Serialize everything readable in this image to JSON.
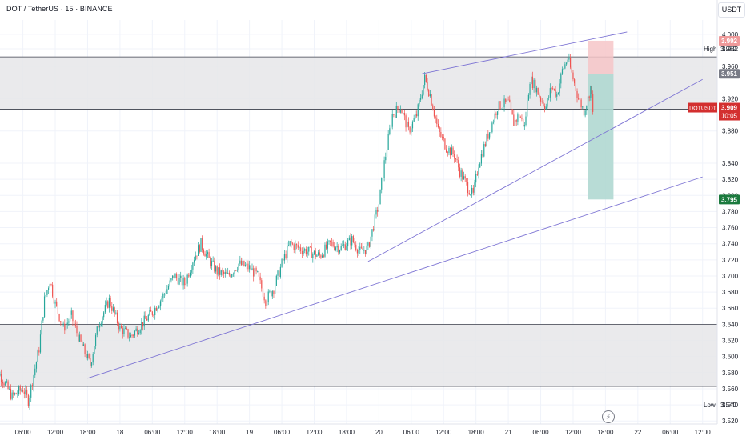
{
  "header": {
    "symbol_title": "DOT / TetherUS · 15 · BINANCE",
    "currency_button": "USDT"
  },
  "icons": {
    "alert": "lightning-icon"
  },
  "colors": {
    "up": "#26a69a",
    "down": "#ef5350",
    "trendline": "#7e75d4",
    "zone": "#e6e6e9",
    "stop": "#f6c6c8",
    "target": "#b0d8d2"
  },
  "chart_data": {
    "type": "candlestick",
    "symbol": "DOTUSDT",
    "timeframe": "15",
    "ylim": [
      3.51,
      4.01
    ],
    "y_ticks": [
      "4.000",
      "3.982",
      "3.960",
      "3.920",
      "3.880",
      "3.840",
      "3.820",
      "3.800",
      "3.780",
      "3.760",
      "3.740",
      "3.720",
      "3.700",
      "3.680",
      "3.660",
      "3.640",
      "3.620",
      "3.600",
      "3.580",
      "3.560",
      "3.540",
      "3.520"
    ],
    "x_ticks": [
      "06:00",
      "12:00",
      "18:00",
      "18",
      "06:00",
      "12:00",
      "18:00",
      "19",
      "06:00",
      "12:00",
      "18:00",
      "20",
      "06:00",
      "12:00",
      "18:00",
      "21",
      "06:00",
      "12:00",
      "18:00",
      "22",
      "06:00",
      "12:00"
    ],
    "price_labels": [
      {
        "label": "High",
        "value": "3.982"
      },
      {
        "label": "",
        "value": "3.992"
      },
      {
        "label": "",
        "value": "3.951"
      },
      {
        "label": "DOTUSDT",
        "value": "3.909",
        "countdown": "10:05"
      },
      {
        "label": "",
        "value": "3.795"
      },
      {
        "label": "Low",
        "value": "3.540"
      }
    ],
    "close_path": [
      [
        "17 00:00",
        3.595
      ],
      [
        "17 02:00",
        3.575
      ],
      [
        "17 04:00",
        3.55
      ],
      [
        "17 06:00",
        3.56
      ],
      [
        "17 07:00",
        3.545
      ],
      [
        "17 09:00",
        3.61
      ],
      [
        "17 10:00",
        3.67
      ],
      [
        "17 11:00",
        3.695
      ],
      [
        "17 12:00",
        3.665
      ],
      [
        "17 13:30",
        3.635
      ],
      [
        "17 15:00",
        3.65
      ],
      [
        "17 16:30",
        3.62
      ],
      [
        "17 18:30",
        3.59
      ],
      [
        "17 20:00",
        3.64
      ],
      [
        "17 22:00",
        3.67
      ],
      [
        "18 00:00",
        3.635
      ],
      [
        "18 02:00",
        3.625
      ],
      [
        "18 04:00",
        3.64
      ],
      [
        "18 06:00",
        3.655
      ],
      [
        "18 08:00",
        3.675
      ],
      [
        "18 10:00",
        3.7
      ],
      [
        "18 12:00",
        3.69
      ],
      [
        "18 13:30",
        3.72
      ],
      [
        "18 15:00",
        3.74
      ],
      [
        "18 16:30",
        3.72
      ],
      [
        "18 18:00",
        3.705
      ],
      [
        "18 20:00",
        3.7
      ],
      [
        "18 22:00",
        3.715
      ],
      [
        "19 00:00",
        3.71
      ],
      [
        "19 01:30",
        3.7
      ],
      [
        "19 03:00",
        3.67
      ],
      [
        "19 04:30",
        3.685
      ],
      [
        "19 06:00",
        3.715
      ],
      [
        "19 07:30",
        3.74
      ],
      [
        "19 09:00",
        3.735
      ],
      [
        "19 11:00",
        3.73
      ],
      [
        "19 13:00",
        3.725
      ],
      [
        "19 15:00",
        3.74
      ],
      [
        "19 17:00",
        3.735
      ],
      [
        "19 19:00",
        3.745
      ],
      [
        "19 20:30",
        3.73
      ],
      [
        "19 22:00",
        3.735
      ],
      [
        "20 00:00",
        3.79
      ],
      [
        "20 01:00",
        3.84
      ],
      [
        "20 02:30",
        3.9
      ],
      [
        "20 04:00",
        3.91
      ],
      [
        "20 05:30",
        3.88
      ],
      [
        "20 07:00",
        3.9
      ],
      [
        "20 08:30",
        3.945
      ],
      [
        "20 09:30",
        3.925
      ],
      [
        "20 11:00",
        3.88
      ],
      [
        "20 12:30",
        3.86
      ],
      [
        "20 14:00",
        3.85
      ],
      [
        "20 15:00",
        3.83
      ],
      [
        "20 16:30",
        3.81
      ],
      [
        "20 17:30",
        3.8
      ],
      [
        "20 18:30",
        3.84
      ],
      [
        "20 19:30",
        3.86
      ],
      [
        "20 20:30",
        3.88
      ],
      [
        "20 22:00",
        3.91
      ],
      [
        "21 00:00",
        3.915
      ],
      [
        "21 01:00",
        3.89
      ],
      [
        "21 02:00",
        3.9
      ],
      [
        "21 03:00",
        3.885
      ],
      [
        "21 04:00",
        3.945
      ],
      [
        "21 05:00",
        3.935
      ],
      [
        "21 06:00",
        3.92
      ],
      [
        "21 07:00",
        3.91
      ],
      [
        "21 08:00",
        3.935
      ],
      [
        "21 09:00",
        3.925
      ],
      [
        "21 10:00",
        3.955
      ],
      [
        "21 11:00",
        3.97
      ],
      [
        "21 12:00",
        3.945
      ],
      [
        "21 13:00",
        3.92
      ],
      [
        "21 14:00",
        3.905
      ],
      [
        "21 14:45",
        3.92
      ],
      [
        "21 15:15",
        3.935
      ],
      [
        "21 15:40",
        3.909
      ]
    ],
    "zones": [
      {
        "y_min": 3.907,
        "y_max": 3.972
      },
      {
        "y_min": 3.563,
        "y_max": 3.64
      }
    ],
    "trendlines": [
      {
        "from": [
          "20 08:00",
          3.951
        ],
        "to": [
          "21 22:00",
          4.003
        ]
      },
      {
        "from": [
          "19 22:00",
          3.718
        ],
        "to": [
          "22 12:00",
          3.944
        ]
      },
      {
        "from": [
          "17 18:00",
          3.573
        ],
        "to": [
          "22 12:00",
          3.823
        ]
      }
    ],
    "position": {
      "entry": 3.951,
      "stop": 3.992,
      "target": 3.795,
      "from": "21 13:30",
      "to": "21 18:00"
    }
  }
}
